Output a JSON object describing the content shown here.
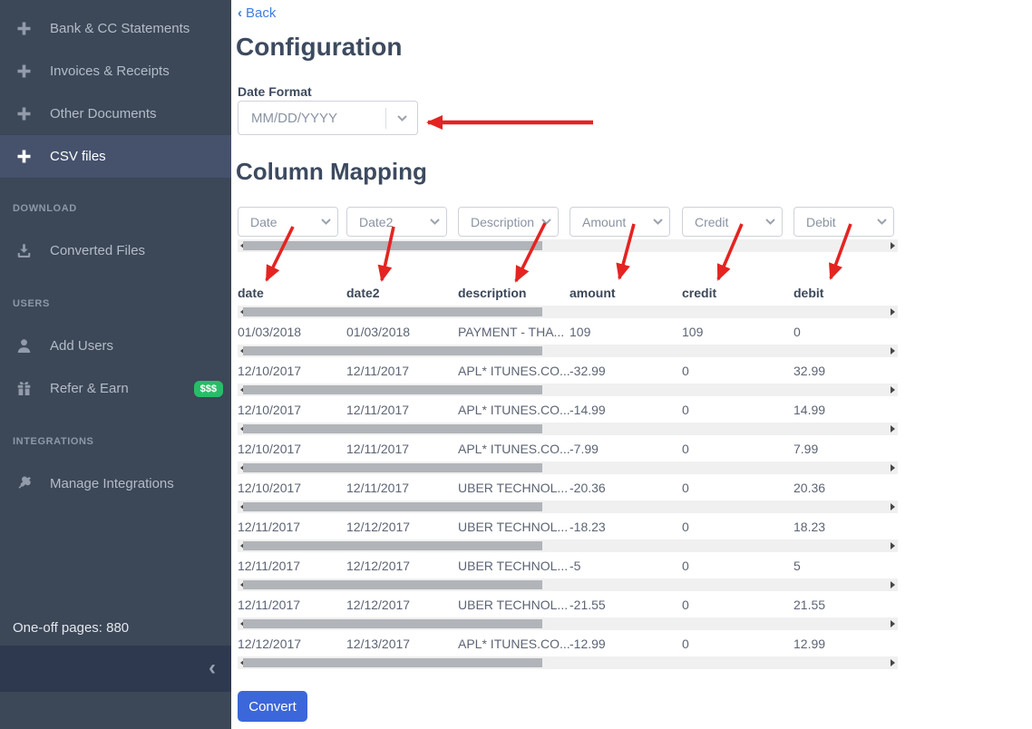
{
  "sidebar": {
    "items": [
      {
        "label": "Bank & CC Statements",
        "icon": "plus-icon",
        "active": false
      },
      {
        "label": "Invoices & Receipts",
        "icon": "plus-icon",
        "active": false
      },
      {
        "label": "Other Documents",
        "icon": "plus-icon",
        "active": false
      },
      {
        "label": "CSV files",
        "icon": "plus-icon",
        "active": true
      }
    ],
    "sections": [
      {
        "title": "DOWNLOAD",
        "items": [
          {
            "label": "Converted Files",
            "icon": "download-icon"
          }
        ]
      },
      {
        "title": "USERS",
        "items": [
          {
            "label": "Add Users",
            "icon": "user-icon"
          },
          {
            "label": "Refer & Earn",
            "icon": "gift-icon",
            "badge": "$$$"
          }
        ]
      },
      {
        "title": "INTEGRATIONS",
        "items": [
          {
            "label": "Manage Integrations",
            "icon": "plug-icon"
          }
        ]
      }
    ],
    "footer_note": "One-off pages: 880"
  },
  "main": {
    "back_label": "Back",
    "title": "Configuration",
    "date_format": {
      "label": "Date Format",
      "value": "MM/DD/YYYY"
    },
    "column_mapping": {
      "title": "Column Mapping",
      "selects": [
        "Date",
        "Date2",
        "Description",
        "Amount",
        "Credit",
        "Debit"
      ]
    },
    "table": {
      "headers": [
        "date",
        "date2",
        "description",
        "amount",
        "credit",
        "debit"
      ],
      "rows": [
        [
          "01/03/2018",
          "01/03/2018",
          "PAYMENT - THA...",
          "109",
          "109",
          "0"
        ],
        [
          "12/10/2017",
          "12/11/2017",
          "APL* ITUNES.CO...",
          "-32.99",
          "0",
          "32.99"
        ],
        [
          "12/10/2017",
          "12/11/2017",
          "APL* ITUNES.CO...",
          "-14.99",
          "0",
          "14.99"
        ],
        [
          "12/10/2017",
          "12/11/2017",
          "APL* ITUNES.CO...",
          "-7.99",
          "0",
          "7.99"
        ],
        [
          "12/10/2017",
          "12/11/2017",
          "UBER TECHNOL...",
          "-20.36",
          "0",
          "20.36"
        ],
        [
          "12/11/2017",
          "12/12/2017",
          "UBER TECHNOL...",
          "-18.23",
          "0",
          "18.23"
        ],
        [
          "12/11/2017",
          "12/12/2017",
          "UBER TECHNOL...",
          "-5",
          "0",
          "5"
        ],
        [
          "12/11/2017",
          "12/12/2017",
          "UBER TECHNOL...",
          "-21.55",
          "0",
          "21.55"
        ],
        [
          "12/12/2017",
          "12/13/2017",
          "APL* ITUNES.CO...",
          "-12.99",
          "0",
          "12.99"
        ]
      ]
    },
    "convert_label": "Convert"
  },
  "colors": {
    "sidebar_bg": "#3c4757",
    "sidebar_active_bg": "#46526c",
    "footer_bg": "#2e3950",
    "sidebar_text": "#b3bcc9",
    "section_title": "#8d98aa",
    "icon_gray": "#929baa",
    "badge_green": "#27bd68",
    "link_blue": "#3e7ce2",
    "button_blue": "#3c67da",
    "arrow_red": "#e42421",
    "heading": "#3d4a5f",
    "table_header": "#3c4859",
    "cell_text": "#5c6474",
    "select_text": "#8a93a3",
    "select_border": "#cdd2d9",
    "scroll_track": "#f0f0f0",
    "scroll_thumb": "#b1b4b8",
    "note_text": "#e4e8ee"
  }
}
